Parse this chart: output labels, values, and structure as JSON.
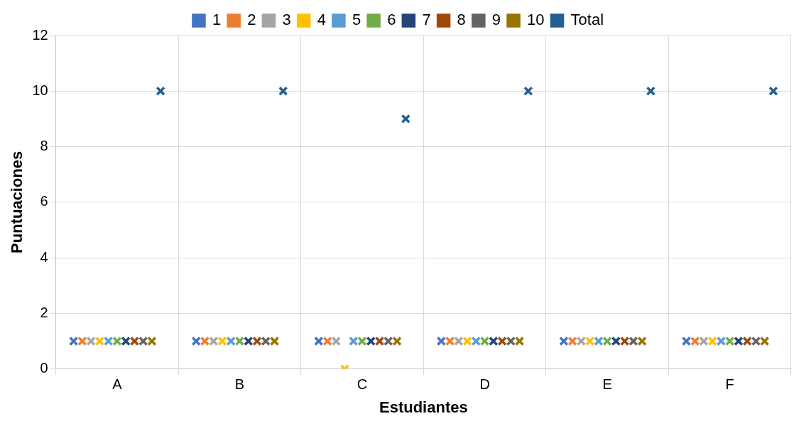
{
  "chart_data": {
    "type": "scatter",
    "xlabel": "Estudiantes",
    "ylabel": "Puntuaciones",
    "categories": [
      "A",
      "B",
      "C",
      "D",
      "E",
      "F"
    ],
    "ylim": [
      0,
      12
    ],
    "yticks": [
      0,
      2,
      4,
      6,
      8,
      10,
      12
    ],
    "grid": true,
    "legend": "top",
    "marker": "cross",
    "series": [
      {
        "name": "1",
        "color": "#4472c4",
        "values": [
          1,
          1,
          1,
          1,
          1,
          1
        ]
      },
      {
        "name": "2",
        "color": "#ed7d31",
        "values": [
          1,
          1,
          1,
          1,
          1,
          1
        ]
      },
      {
        "name": "3",
        "color": "#a5a5a5",
        "values": [
          1,
          1,
          1,
          1,
          1,
          1
        ]
      },
      {
        "name": "4",
        "color": "#ffc000",
        "values": [
          1,
          1,
          0,
          1,
          1,
          1
        ]
      },
      {
        "name": "5",
        "color": "#5b9bd5",
        "values": [
          1,
          1,
          1,
          1,
          1,
          1
        ]
      },
      {
        "name": "6",
        "color": "#70ad47",
        "values": [
          1,
          1,
          1,
          1,
          1,
          1
        ]
      },
      {
        "name": "7",
        "color": "#264478",
        "values": [
          1,
          1,
          1,
          1,
          1,
          1
        ]
      },
      {
        "name": "8",
        "color": "#9e480e",
        "values": [
          1,
          1,
          1,
          1,
          1,
          1
        ]
      },
      {
        "name": "9",
        "color": "#636363",
        "values": [
          1,
          1,
          1,
          1,
          1,
          1
        ]
      },
      {
        "name": "10",
        "color": "#997300",
        "values": [
          1,
          1,
          1,
          1,
          1,
          1
        ]
      },
      {
        "name": "Total",
        "color": "#255e91",
        "values": [
          10,
          10,
          9,
          10,
          10,
          10
        ]
      }
    ]
  }
}
